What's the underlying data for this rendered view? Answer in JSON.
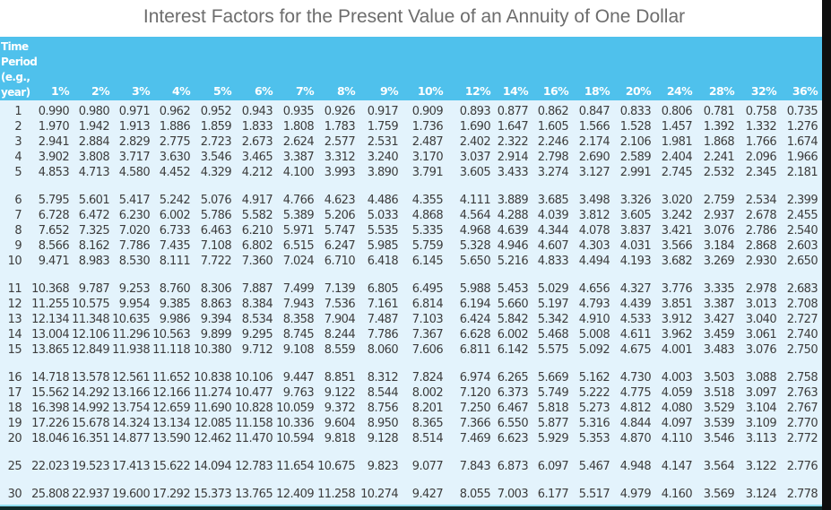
{
  "title": "Interest Factors for the Present Value of an Annuity of One Dollar",
  "header": {
    "period_label": "Time Period (e.g., year)",
    "period_label_lines": [
      "Time",
      "Period",
      "(e.g.,",
      "year)"
    ],
    "rates": [
      "1%",
      "2%",
      "3%",
      "4%",
      "5%",
      "6%",
      "7%",
      "8%",
      "9%",
      "10%",
      "12%",
      "14%",
      "16%",
      "18%",
      "20%",
      "24%",
      "28%",
      "32%",
      "36%"
    ]
  },
  "colors": {
    "header_bg": "#4fc1ec",
    "body_bg": "#e3f3fc",
    "title_text": "#6d6d6d",
    "cell_text": "#3c3c3c"
  },
  "rows": [
    {
      "period": "1",
      "values": [
        "0.990",
        "0.980",
        "0.971",
        "0.962",
        "0.952",
        "0.943",
        "0.935",
        "0.926",
        "0.917",
        "0.909",
        "0.893",
        "0.877",
        "0.862",
        "0.847",
        "0.833",
        "0.806",
        "0.781",
        "0.758",
        "0.735"
      ]
    },
    {
      "period": "2",
      "values": [
        "1.970",
        "1.942",
        "1.913",
        "1.886",
        "1.859",
        "1.833",
        "1.808",
        "1.783",
        "1.759",
        "1.736",
        "1.690",
        "1.647",
        "1.605",
        "1.566",
        "1.528",
        "1.457",
        "1.392",
        "1.332",
        "1.276"
      ]
    },
    {
      "period": "3",
      "values": [
        "2.941",
        "2.884",
        "2.829",
        "2.775",
        "2.723",
        "2.673",
        "2.624",
        "2.577",
        "2.531",
        "2.487",
        "2.402",
        "2.322",
        "2.246",
        "2.174",
        "2.106",
        "1.981",
        "1.868",
        "1.766",
        "1.674"
      ]
    },
    {
      "period": "4",
      "values": [
        "3.902",
        "3.808",
        "3.717",
        "3.630",
        "3.546",
        "3.465",
        "3.387",
        "3.312",
        "3.240",
        "3.170",
        "3.037",
        "2.914",
        "2.798",
        "2.690",
        "2.589",
        "2.404",
        "2.241",
        "2.096",
        "1.966"
      ]
    },
    {
      "period": "5",
      "values": [
        "4.853",
        "4.713",
        "4.580",
        "4.452",
        "4.329",
        "4.212",
        "4.100",
        "3.993",
        "3.890",
        "3.791",
        "3.605",
        "3.433",
        "3.274",
        "3.127",
        "2.991",
        "2.745",
        "2.532",
        "2.345",
        "2.181"
      ]
    },
    {
      "period": "6",
      "values": [
        "5.795",
        "5.601",
        "5.417",
        "5.242",
        "5.076",
        "4.917",
        "4.766",
        "4.623",
        "4.486",
        "4.355",
        "4.111",
        "3.889",
        "3.685",
        "3.498",
        "3.326",
        "3.020",
        "2.759",
        "2.534",
        "2.399"
      ]
    },
    {
      "period": "7",
      "values": [
        "6.728",
        "6.472",
        "6.230",
        "6.002",
        "5.786",
        "5.582",
        "5.389",
        "5.206",
        "5.033",
        "4.868",
        "4.564",
        "4.288",
        "4.039",
        "3.812",
        "3.605",
        "3.242",
        "2.937",
        "2.678",
        "2.455"
      ]
    },
    {
      "period": "8",
      "values": [
        "7.652",
        "7.325",
        "7.020",
        "6.733",
        "6.463",
        "6.210",
        "5.971",
        "5.747",
        "5.535",
        "5.335",
        "4.968",
        "4.639",
        "4.344",
        "4.078",
        "3.837",
        "3.421",
        "3.076",
        "2.786",
        "2.540"
      ]
    },
    {
      "period": "9",
      "values": [
        "8.566",
        "8.162",
        "7.786",
        "7.435",
        "7.108",
        "6.802",
        "6.515",
        "6.247",
        "5.985",
        "5.759",
        "5.328",
        "4.946",
        "4.607",
        "4.303",
        "4.031",
        "3.566",
        "3.184",
        "2.868",
        "2.603"
      ]
    },
    {
      "period": "10",
      "values": [
        "9.471",
        "8.983",
        "8.530",
        "8.111",
        "7.722",
        "7.360",
        "7.024",
        "6.710",
        "6.418",
        "6.145",
        "5.650",
        "5.216",
        "4.833",
        "4.494",
        "4.193",
        "3.682",
        "3.269",
        "2.930",
        "2.650"
      ]
    },
    {
      "period": "11",
      "values": [
        "10.368",
        "9.787",
        "9.253",
        "8.760",
        "8.306",
        "7.887",
        "7.499",
        "7.139",
        "6.805",
        "6.495",
        "5.988",
        "5.453",
        "5.029",
        "4.656",
        "4.327",
        "3.776",
        "3.335",
        "2.978",
        "2.683"
      ]
    },
    {
      "period": "12",
      "values": [
        "11.255",
        "10.575",
        "9.954",
        "9.385",
        "8.863",
        "8.384",
        "7.943",
        "7.536",
        "7.161",
        "6.814",
        "6.194",
        "5.660",
        "5.197",
        "4.793",
        "4.439",
        "3.851",
        "3.387",
        "3.013",
        "2.708"
      ]
    },
    {
      "period": "13",
      "values": [
        "12.134",
        "11.348",
        "10.635",
        "9.986",
        "9.394",
        "8.534",
        "8.358",
        "7.904",
        "7.487",
        "7.103",
        "6.424",
        "5.842",
        "5.342",
        "4.910",
        "4.533",
        "3.912",
        "3.427",
        "3.040",
        "2.727"
      ]
    },
    {
      "period": "14",
      "values": [
        "13.004",
        "12.106",
        "11.296",
        "10.563",
        "9.899",
        "9.295",
        "8.745",
        "8.244",
        "7.786",
        "7.367",
        "6.628",
        "6.002",
        "5.468",
        "5.008",
        "4.611",
        "3.962",
        "3.459",
        "3.061",
        "2.740"
      ]
    },
    {
      "period": "15",
      "values": [
        "13.865",
        "12.849",
        "11.938",
        "11.118",
        "10.380",
        "9.712",
        "9.108",
        "8.559",
        "8.060",
        "7.606",
        "6.811",
        "6.142",
        "5.575",
        "5.092",
        "4.675",
        "4.001",
        "3.483",
        "3.076",
        "2.750"
      ]
    },
    {
      "period": "16",
      "values": [
        "14.718",
        "13.578",
        "12.561",
        "11.652",
        "10.838",
        "10.106",
        "9.447",
        "8.851",
        "8.312",
        "7.824",
        "6.974",
        "6.265",
        "5.669",
        "5.162",
        "4.730",
        "4.003",
        "3.503",
        "3.088",
        "2.758"
      ]
    },
    {
      "period": "17",
      "values": [
        "15.562",
        "14.292",
        "13.166",
        "12.166",
        "11.274",
        "10.477",
        "9.763",
        "9.122",
        "8.544",
        "8.002",
        "7.120",
        "6.373",
        "5.749",
        "5.222",
        "4.775",
        "4.059",
        "3.518",
        "3.097",
        "2.763"
      ]
    },
    {
      "period": "18",
      "values": [
        "16.398",
        "14.992",
        "13.754",
        "12.659",
        "11.690",
        "10.828",
        "10.059",
        "9.372",
        "8.756",
        "8.201",
        "7.250",
        "6.467",
        "5.818",
        "5.273",
        "4.812",
        "4.080",
        "3.529",
        "3.104",
        "2.767"
      ]
    },
    {
      "period": "19",
      "values": [
        "17.226",
        "15.678",
        "14.324",
        "13.134",
        "12.085",
        "11.158",
        "10.336",
        "9.604",
        "8.950",
        "8.365",
        "7.366",
        "6.550",
        "5.877",
        "5.316",
        "4.844",
        "4.097",
        "3.539",
        "3.109",
        "2.770"
      ]
    },
    {
      "period": "20",
      "values": [
        "18.046",
        "16.351",
        "14.877",
        "13.590",
        "12.462",
        "11.470",
        "10.594",
        "9.818",
        "9.128",
        "8.514",
        "7.469",
        "6.623",
        "5.929",
        "5.353",
        "4.870",
        "4.110",
        "3.546",
        "3.113",
        "2.772"
      ]
    },
    {
      "period": "25",
      "values": [
        "22.023",
        "19.523",
        "17.413",
        "15.622",
        "14.094",
        "12.783",
        "11.654",
        "10.675",
        "9.823",
        "9.077",
        "7.843",
        "6.873",
        "6.097",
        "5.467",
        "4.948",
        "4.147",
        "3.564",
        "3.122",
        "2.776"
      ]
    },
    {
      "period": "30",
      "values": [
        "25.808",
        "22.937",
        "19.600",
        "17.292",
        "15.373",
        "13.765",
        "12.409",
        "11.258",
        "10.274",
        "9.427",
        "8.055",
        "7.003",
        "6.177",
        "5.517",
        "4.979",
        "4.160",
        "3.569",
        "3.124",
        "2.778"
      ]
    }
  ]
}
